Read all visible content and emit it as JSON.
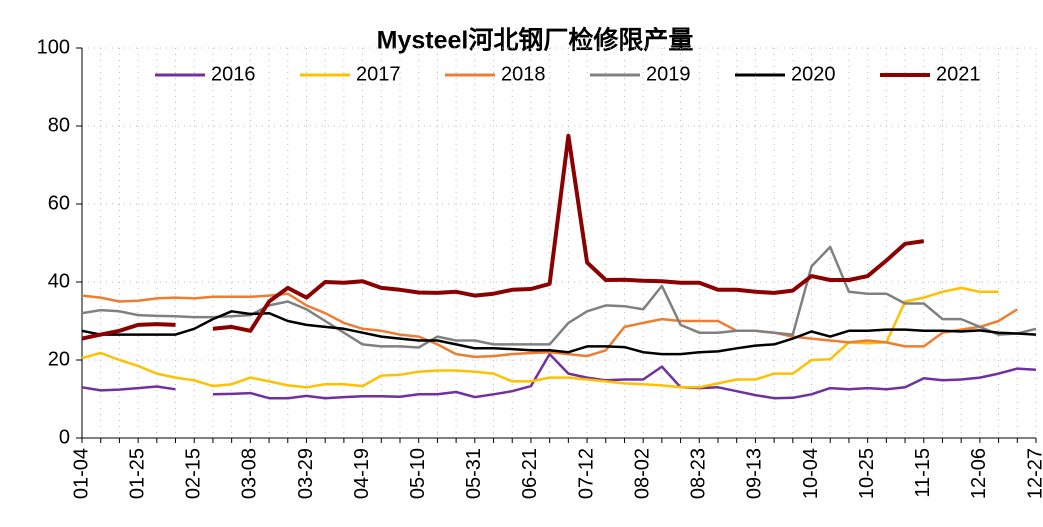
{
  "chart_data": {
    "type": "line",
    "title": "Mysteel河北钢厂检修限产量",
    "categories": [
      "01-04",
      null,
      null,
      "01-25",
      null,
      null,
      "02-15",
      null,
      null,
      "03-08",
      null,
      null,
      "03-29",
      null,
      null,
      "04-19",
      null,
      null,
      "05-10",
      null,
      null,
      "05-31",
      null,
      null,
      "06-21",
      null,
      null,
      "07-12",
      null,
      null,
      "08-02",
      null,
      null,
      "08-23",
      null,
      null,
      "09-13",
      null,
      null,
      "10-04",
      null,
      null,
      "10-25",
      null,
      null,
      "11-15",
      null,
      null,
      "12-06",
      null,
      null,
      "12-27"
    ],
    "ylim": [
      0,
      100
    ],
    "yticks": [
      0,
      20,
      40,
      60,
      80,
      100
    ],
    "grid": true,
    "legend": "top",
    "series": [
      {
        "name": "2016",
        "color": "#7030a0",
        "values": [
          13,
          12.2,
          12.4,
          12.8,
          13.2,
          12.5,
          null,
          11.2,
          11.3,
          11.5,
          10.2,
          10.2,
          10.8,
          10.2,
          10.5,
          10.7,
          10.7,
          10.6,
          11.2,
          11.2,
          11.8,
          10.5,
          11.2,
          12,
          13.3,
          21.5,
          16.5,
          15.5,
          14.8,
          15,
          15,
          18.3,
          13,
          12.8,
          13,
          12,
          11,
          10.2,
          10.3,
          11.2,
          12.8,
          12.5,
          12.8,
          12.5,
          13,
          15.3,
          14.8,
          15,
          15.5,
          16.5,
          17.8,
          17.5
        ]
      },
      {
        "name": "2017",
        "color": "#ffc000",
        "values": [
          20.5,
          21.8,
          20,
          18.5,
          16.5,
          15.5,
          14.8,
          13.3,
          13.8,
          15.5,
          14.5,
          13.5,
          13,
          13.8,
          13.8,
          13.3,
          16,
          16.2,
          17,
          17.3,
          17.3,
          17,
          16.5,
          14.5,
          14.5,
          15.5,
          15.5,
          15,
          14.5,
          14,
          13.8,
          13.5,
          13,
          13,
          14,
          15,
          15,
          16.5,
          16.5,
          20,
          20.2,
          24.5,
          24.3,
          24.5,
          35,
          36,
          37.5,
          38.5,
          37.5,
          37.5,
          null,
          null
        ]
      },
      {
        "name": "2018",
        "color": "#ed7d31",
        "values": [
          36.5,
          36,
          35,
          35.2,
          35.8,
          36,
          35.8,
          36.2,
          36.2,
          36.2,
          36.5,
          37,
          34,
          32,
          29.5,
          28,
          27.5,
          26.5,
          26,
          24,
          21.5,
          20.8,
          21,
          21.5,
          21.8,
          22,
          21.5,
          21,
          22.5,
          28.5,
          29.5,
          30.5,
          30,
          30,
          30,
          27.5,
          27.5,
          27,
          26,
          25.5,
          25,
          24.5,
          25,
          24.5,
          23.5,
          23.5,
          27,
          27.8,
          28.5,
          30,
          33,
          null
        ]
      },
      {
        "name": "2019",
        "color": "#808080",
        "values": [
          32,
          32.8,
          32.5,
          31.5,
          31.3,
          31.2,
          31,
          31,
          31.2,
          31.5,
          34,
          35,
          33,
          30,
          27,
          24,
          23.5,
          23.5,
          23.2,
          26,
          25,
          25,
          24,
          24,
          24,
          24,
          29.5,
          32.5,
          34,
          33.8,
          33,
          39,
          29,
          27,
          27,
          27.5,
          27.5,
          27,
          26.5,
          44,
          49,
          37.5,
          37,
          37,
          34.5,
          34.5,
          30.5,
          30.5,
          28.5,
          26.5,
          26.8,
          28
        ]
      },
      {
        "name": "2020",
        "color": "#000000",
        "values": [
          27.5,
          26.5,
          26.5,
          26.5,
          26.5,
          26.5,
          28,
          30.5,
          32.5,
          31.8,
          32,
          30,
          29,
          28.5,
          28,
          27,
          26,
          25.5,
          25,
          25,
          24,
          23,
          23,
          22.8,
          22.5,
          22.5,
          22,
          23.5,
          23.5,
          23.3,
          22,
          21.5,
          21.5,
          22,
          22.2,
          23,
          23.7,
          24,
          25.5,
          27.3,
          26,
          27.5,
          27.5,
          27.8,
          27.8,
          27.5,
          27.5,
          27.3,
          27.6,
          27,
          26.8,
          26.5
        ]
      },
      {
        "name": "2021",
        "color": "#8b0000",
        "values": [
          25.5,
          26.5,
          27.5,
          29,
          29.2,
          29,
          null,
          28,
          28.5,
          27.5,
          35,
          38.5,
          36,
          40,
          39.8,
          40.2,
          38.5,
          38,
          37.3,
          37.2,
          37.5,
          36.5,
          37,
          38,
          38.2,
          39.5,
          77.5,
          45,
          40.5,
          40.6,
          40.3,
          40.2,
          39.8,
          39.8,
          38,
          38,
          37.5,
          37.2,
          37.8,
          41.5,
          40.5,
          40.5,
          41.5,
          45.5,
          49.8,
          50.5,
          null,
          null,
          null,
          null,
          null,
          null
        ]
      }
    ]
  }
}
